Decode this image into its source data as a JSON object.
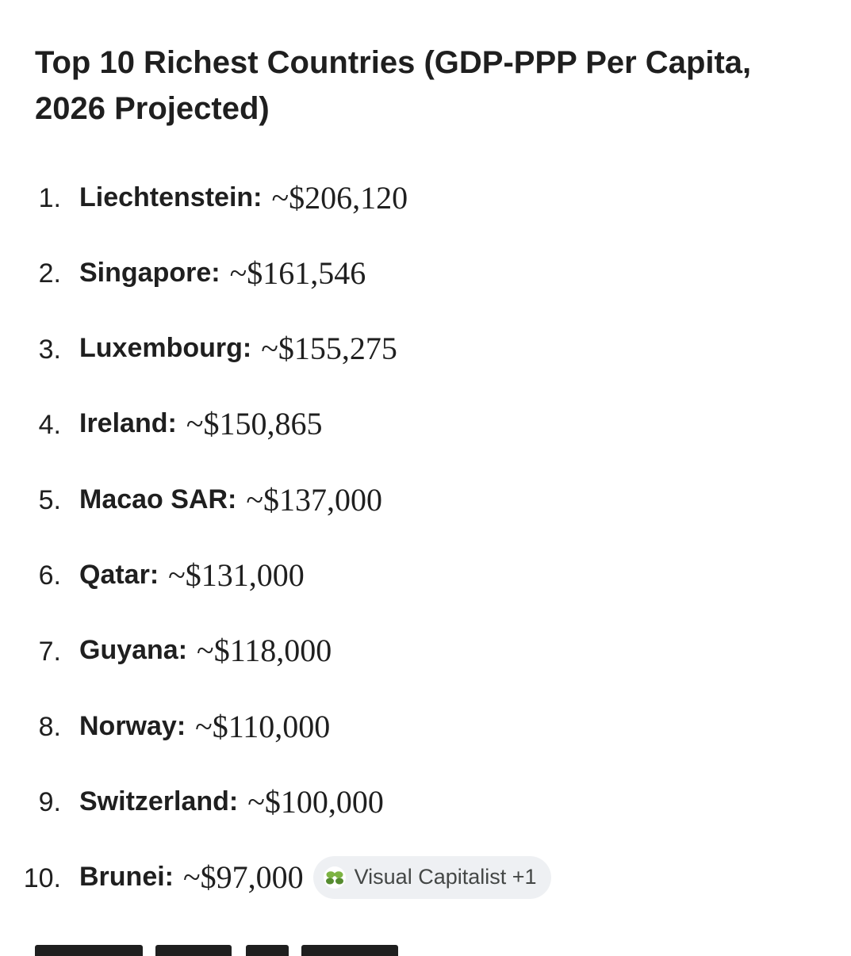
{
  "heading": "Top 10 Richest Countries (GDP-PPP Per Capita, 2026 Projected)",
  "list": [
    {
      "number": "1.",
      "country": "Liechtenstein:",
      "value": "~$206,120"
    },
    {
      "number": "2.",
      "country": "Singapore:",
      "value": "~$161,546"
    },
    {
      "number": "3.",
      "country": "Luxembourg:",
      "value": "~$155,275"
    },
    {
      "number": "4.",
      "country": "Ireland:",
      "value": "~$150,865"
    },
    {
      "number": "5.",
      "country": "Macao SAR:",
      "value": "~$137,000"
    },
    {
      "number": "6.",
      "country": "Qatar:",
      "value": "~$131,000"
    },
    {
      "number": "7.",
      "country": "Guyana:",
      "value": "~$118,000"
    },
    {
      "number": "8.",
      "country": "Norway:",
      "value": "~$110,000"
    },
    {
      "number": "9.",
      "country": "Switzerland:",
      "value": "~$100,000"
    },
    {
      "number": "10.",
      "country": "Brunei:",
      "value": "~$97,000"
    }
  ],
  "source_chip": {
    "label": "Visual Capitalist +1",
    "icon": "visual-capitalist-logo-icon",
    "icon_color": "#7cb342"
  },
  "colors": {
    "text": "#1f1f1f",
    "chip_background": "#eef0f3",
    "chip_text": "#444746"
  }
}
